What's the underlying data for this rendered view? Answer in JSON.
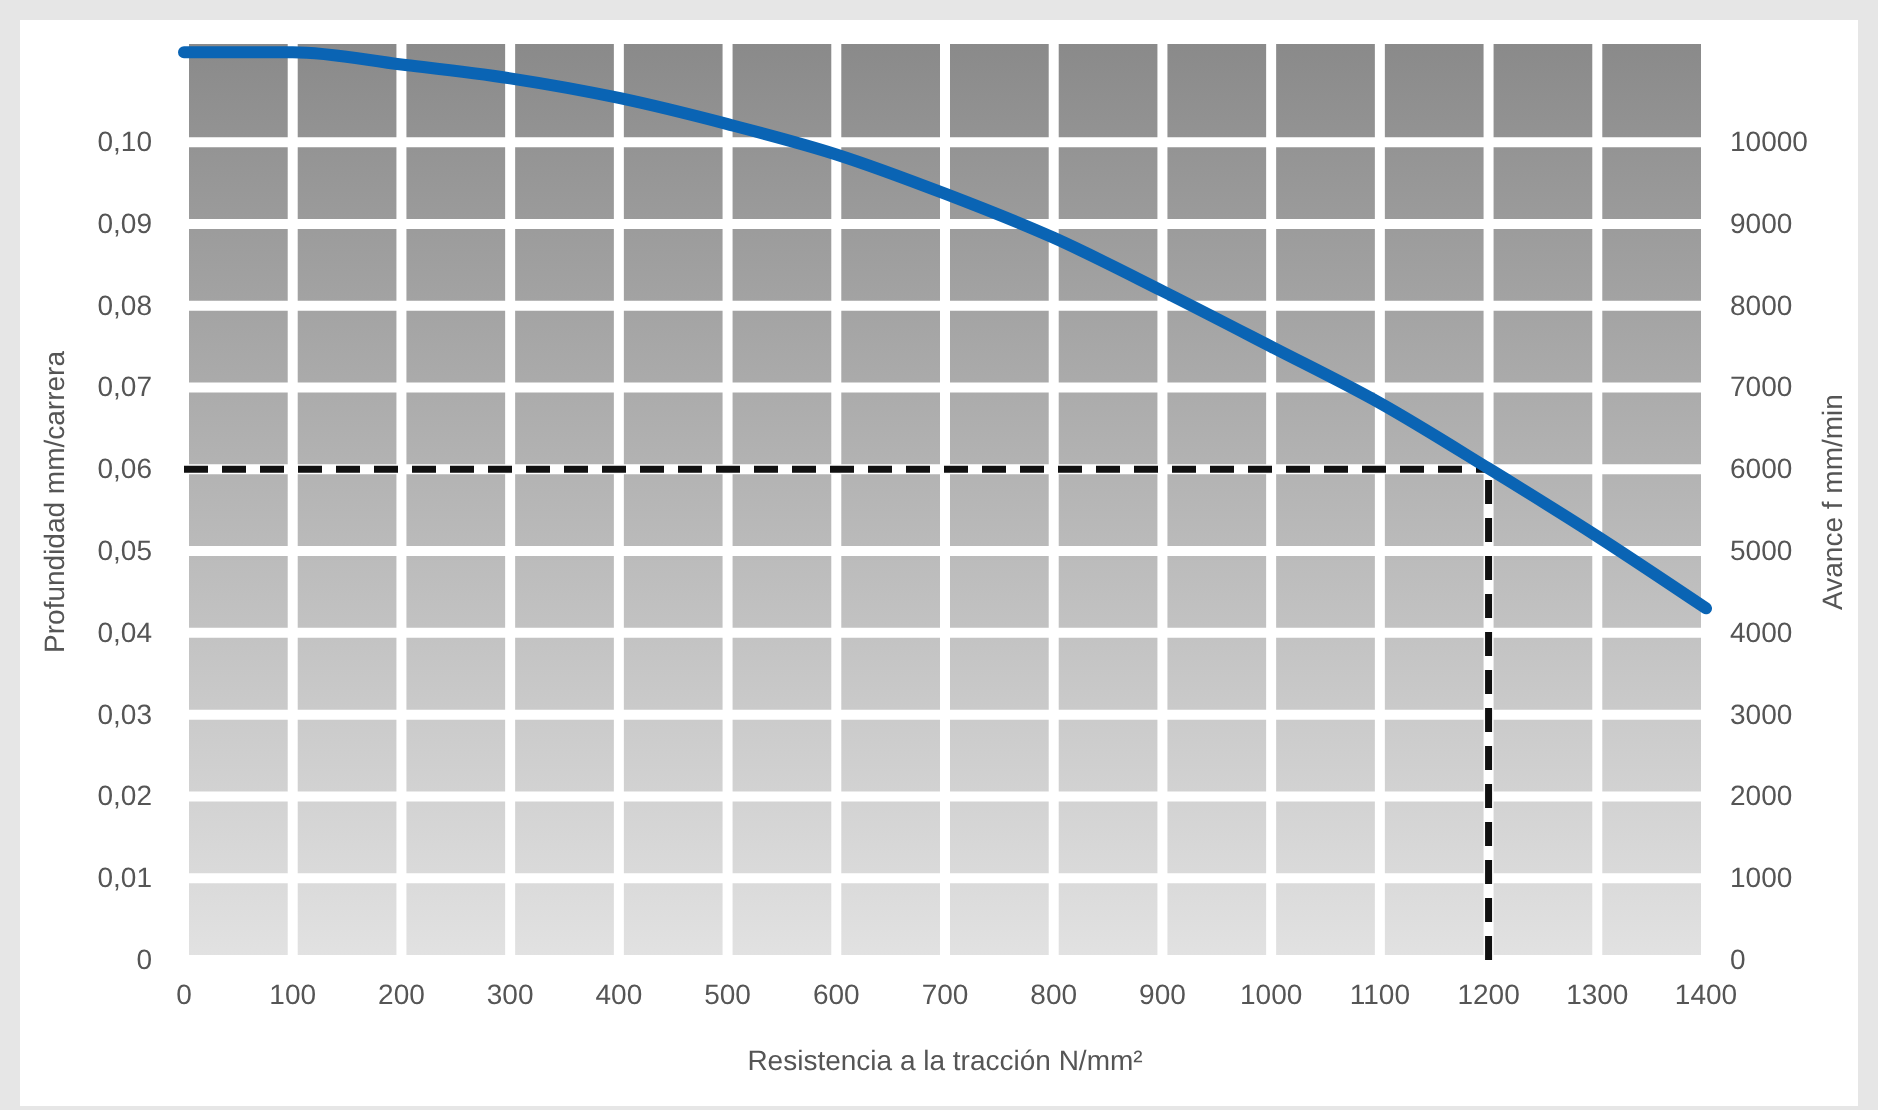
{
  "chart_data": {
    "type": "line",
    "xlabel": "Resistencia a la tracción N/mm²",
    "ylabel": "Profundidad mm/carrera",
    "y2label": "Avance f mm/min",
    "x": [
      0,
      100,
      200,
      300,
      400,
      500,
      600,
      700,
      800,
      900,
      1000,
      1100,
      1200,
      1300,
      1400
    ],
    "series": [
      {
        "color": "#0a64b4",
        "values": [
          0.111,
          0.111,
          0.1095,
          0.1078,
          0.1054,
          0.1022,
          0.0985,
          0.0937,
          0.0883,
          0.0818,
          0.075,
          0.0681,
          0.0601,
          0.0518,
          0.043
        ]
      }
    ],
    "xlim": [
      0,
      1400
    ],
    "xticks": [
      0,
      100,
      200,
      300,
      400,
      500,
      600,
      700,
      800,
      900,
      1000,
      1100,
      1200,
      1300,
      1400
    ],
    "ylim": [
      0,
      0.112
    ],
    "yticks": [
      0,
      {
        "value": 0.01,
        "label": "0,01"
      },
      {
        "value": 0.02,
        "label": "0,02"
      },
      {
        "value": 0.03,
        "label": "0,03"
      },
      {
        "value": 0.04,
        "label": "0,04"
      },
      {
        "value": 0.05,
        "label": "0,05"
      },
      {
        "value": 0.06,
        "label": "0,06"
      },
      {
        "value": 0.07,
        "label": "0,07"
      },
      {
        "value": 0.08,
        "label": "0,08"
      },
      {
        "value": 0.09,
        "label": "0,09"
      },
      {
        "value": 0.1,
        "label": "0,10"
      }
    ],
    "y2lim": [
      0,
      11200
    ],
    "y2ticks": [
      0,
      1000,
      2000,
      3000,
      4000,
      5000,
      6000,
      7000,
      8000,
      9000,
      10000
    ],
    "grid": true,
    "marker": "none",
    "line_style": "solid",
    "ref_lines": [
      {
        "axis": "y",
        "value": 0.06,
        "color": "#111111",
        "line_style": "dashed"
      },
      {
        "axis": "x",
        "value": 1200,
        "color": "#111111",
        "line_style": "dashed"
      }
    ]
  }
}
